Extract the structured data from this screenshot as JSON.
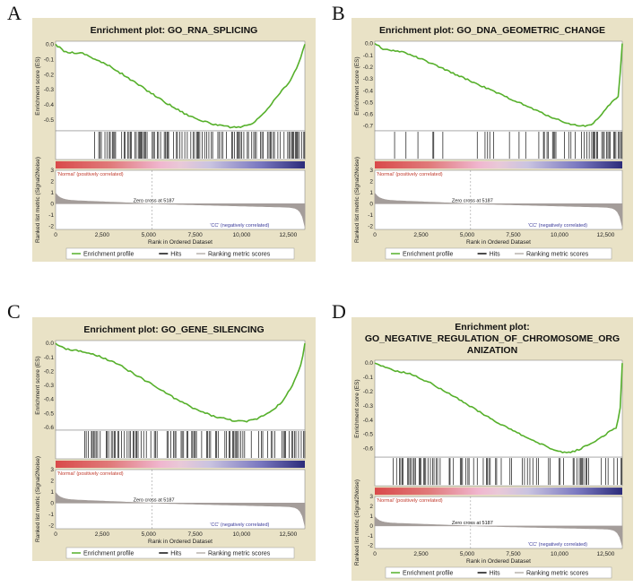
{
  "figure": {
    "x_axis_label": "Rank in Ordered Dataset",
    "es_axis_label": "Enrichment score (ES)",
    "metric_axis_label": "Ranked list metric (Signal2Noise)",
    "positive_label": "'Normal' (positively correlated)",
    "negative_label": "'CC' (negatively correlated)",
    "zero_cross_label": "Zero cross at 5187",
    "x_ticks": [
      "0",
      "2,500",
      "5,000",
      "7,500",
      "10,000",
      "12,500"
    ],
    "x_tick_values": [
      0,
      2500,
      5000,
      7500,
      10000,
      12500
    ],
    "x_range": [
      0,
      13400
    ],
    "zero_cross": 5187,
    "metric_ticks": [
      "3",
      "2",
      "1",
      "0",
      "-1",
      "-2"
    ],
    "metric_tick_values": [
      3,
      2,
      1,
      0,
      -1,
      -2
    ],
    "metric_range": [
      -2.3,
      3
    ],
    "legend": [
      "Enrichment profile",
      "Hits",
      "Ranking metric scores"
    ]
  },
  "colors": {
    "panel_bg": "#e9e2c6",
    "profile": "#56b02b",
    "hits": "#111111",
    "metric": "#a49d9a",
    "positive": "#d94a4a",
    "negative": "#2c2c7a"
  },
  "chart_data": [
    {
      "type": "line",
      "panel": "A",
      "title": "Enrichment plot: GO_RNA_SPLICING",
      "xlabel": "Rank in Ordered Dataset",
      "ylabel": "Enrichment score (ES)",
      "y_ticks": [
        "0.0",
        "-0.1",
        "-0.2",
        "-0.3",
        "-0.4",
        "-0.5"
      ],
      "y_tick_values": [
        0,
        -0.1,
        -0.2,
        -0.3,
        -0.4,
        -0.5
      ],
      "ylim": [
        -0.57,
        0.02
      ],
      "x": [
        0,
        500,
        1500,
        2000,
        3000,
        4000,
        5000,
        6000,
        7000,
        8000,
        9000,
        9800,
        10500,
        11000,
        11500,
        12000,
        12500,
        13000,
        13400
      ],
      "es": [
        0,
        -0.05,
        -0.06,
        -0.09,
        -0.15,
        -0.23,
        -0.31,
        -0.39,
        -0.46,
        -0.51,
        -0.54,
        -0.55,
        -0.53,
        -0.48,
        -0.41,
        -0.33,
        -0.26,
        -0.15,
        0
      ],
      "hit_segments": [
        [
          2000,
          13400,
          0.6
        ]
      ]
    },
    {
      "type": "line",
      "panel": "B",
      "title": "Enrichment plot: GO_DNA_GEOMETRIC_CHANGE",
      "xlabel": "Rank in Ordered Dataset",
      "ylabel": "Enrichment score (ES)",
      "y_ticks": [
        "0.0",
        "-0.1",
        "-0.2",
        "-0.3",
        "-0.4",
        "-0.5",
        "-0.6",
        "-0.7"
      ],
      "y_tick_values": [
        0,
        -0.1,
        -0.2,
        -0.3,
        -0.4,
        -0.5,
        -0.6,
        -0.7
      ],
      "ylim": [
        -0.74,
        0.02
      ],
      "x": [
        0,
        500,
        1500,
        2500,
        3500,
        4500,
        5500,
        6500,
        7500,
        8500,
        9500,
        10500,
        11200,
        11700,
        12200,
        12800,
        13200,
        13400
      ],
      "es": [
        0,
        -0.05,
        -0.07,
        -0.13,
        -0.2,
        -0.27,
        -0.34,
        -0.41,
        -0.48,
        -0.55,
        -0.62,
        -0.68,
        -0.7,
        -0.69,
        -0.62,
        -0.5,
        -0.45,
        0
      ],
      "hit_segments": [
        [
          1000,
          10500,
          0.22
        ],
        [
          10500,
          13400,
          0.55
        ]
      ]
    },
    {
      "type": "line",
      "panel": "C",
      "title": "Enrichment plot: GO_GENE_SILENCING",
      "xlabel": "Rank in Ordered Dataset",
      "ylabel": "Enrichment score (ES)",
      "y_ticks": [
        "0.0",
        "-0.1",
        "-0.2",
        "-0.3",
        "-0.4",
        "-0.5",
        "-0.6"
      ],
      "y_tick_values": [
        0,
        -0.1,
        -0.2,
        -0.3,
        -0.4,
        -0.5,
        -0.6
      ],
      "ylim": [
        -0.62,
        0.02
      ],
      "x": [
        0,
        500,
        1500,
        2500,
        3500,
        4500,
        5500,
        6500,
        7500,
        8500,
        9500,
        10200,
        10800,
        11500,
        12200,
        12800,
        13200,
        13400
      ],
      "es": [
        0,
        -0.04,
        -0.06,
        -0.1,
        -0.16,
        -0.24,
        -0.32,
        -0.4,
        -0.47,
        -0.52,
        -0.55,
        -0.56,
        -0.54,
        -0.49,
        -0.42,
        -0.28,
        -0.15,
        0
      ],
      "hit_segments": [
        [
          1500,
          13400,
          0.55
        ]
      ]
    },
    {
      "type": "line",
      "panel": "D",
      "title": "Enrichment plot: GO_NEGATIVE_REGULATION_OF_CHROMOSOME_ORGANIZATION",
      "title_lines": [
        "Enrichment plot:",
        "GO_NEGATIVE_REGULATION_OF_CHROMOSOME_ORG",
        "ANIZATION"
      ],
      "xlabel": "Rank in Ordered Dataset",
      "ylabel": "Enrichment score (ES)",
      "y_ticks": [
        "0.0",
        "-0.1",
        "-0.2",
        "-0.3",
        "-0.4",
        "-0.5",
        "-0.6"
      ],
      "y_tick_values": [
        0,
        -0.1,
        -0.2,
        -0.3,
        -0.4,
        -0.5,
        -0.6
      ],
      "ylim": [
        -0.66,
        0.02
      ],
      "x": [
        0,
        1000,
        2000,
        3000,
        4000,
        5000,
        6000,
        7000,
        8000,
        9000,
        10000,
        10500,
        11000,
        11800,
        12500,
        13100,
        13300,
        13400
      ],
      "es": [
        0,
        -0.05,
        -0.08,
        -0.14,
        -0.21,
        -0.29,
        -0.37,
        -0.44,
        -0.51,
        -0.57,
        -0.62,
        -0.63,
        -0.61,
        -0.56,
        -0.5,
        -0.45,
        -0.3,
        0
      ],
      "hit_segments": [
        [
          1000,
          13400,
          0.45
        ]
      ]
    }
  ]
}
